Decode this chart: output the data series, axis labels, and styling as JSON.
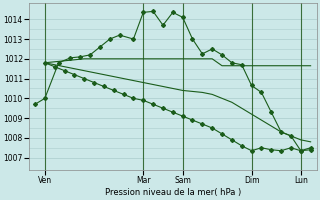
{
  "background_color": "#cce8e8",
  "grid_color": "#aacccc",
  "line_color": "#1a5c1a",
  "title": "Pression niveau de la mer( hPa )",
  "ylabel_ticks": [
    1007,
    1008,
    1009,
    1010,
    1011,
    1012,
    1013,
    1014
  ],
  "ylim": [
    1006.4,
    1014.8
  ],
  "xlim": [
    -0.3,
    14.3
  ],
  "x_day_labels": [
    "Ven",
    "Mar",
    "Sam",
    "Dim",
    "Lun"
  ],
  "x_day_positions": [
    0.5,
    5.5,
    7.5,
    11.0,
    13.5
  ],
  "x_vlines": [
    0.5,
    5.5,
    7.5,
    11.0,
    13.5
  ],
  "series1_x": [
    0.0,
    0.5,
    1.2,
    1.8,
    2.3,
    2.8,
    3.3,
    3.8,
    4.3,
    5.0,
    5.5,
    6.0,
    6.5,
    7.0,
    7.5,
    8.0,
    8.5,
    9.0,
    9.5,
    10.0,
    10.5,
    11.0,
    11.5,
    12.0,
    12.5,
    13.0,
    13.5,
    14.0
  ],
  "series1_y": [
    1009.7,
    1010.0,
    1011.8,
    1012.05,
    1012.1,
    1012.2,
    1012.6,
    1013.0,
    1013.2,
    1013.0,
    1014.35,
    1014.4,
    1013.7,
    1014.35,
    1014.1,
    1013.0,
    1012.25,
    1012.5,
    1012.2,
    1011.8,
    1011.7,
    1010.65,
    1010.3,
    1009.3,
    1008.3,
    1008.1,
    1007.35,
    1007.5
  ],
  "series2_x": [
    0.5,
    1.0,
    1.5,
    2.0,
    2.5,
    3.0,
    3.5,
    4.0,
    4.5,
    5.0,
    5.5,
    6.0,
    6.5,
    7.0,
    7.5,
    8.0,
    8.5,
    9.0,
    9.5,
    10.0,
    10.5,
    11.0,
    11.5,
    12.0,
    12.5,
    13.0,
    13.5,
    14.0
  ],
  "series2_y": [
    1011.8,
    1011.85,
    1011.9,
    1011.95,
    1012.0,
    1012.0,
    1012.0,
    1012.0,
    1012.0,
    1012.0,
    1012.0,
    1012.0,
    1012.0,
    1012.0,
    1012.0,
    1012.0,
    1012.0,
    1012.0,
    1011.65,
    1011.65,
    1011.65,
    1011.65,
    1011.65,
    1011.65,
    1011.65,
    1011.65,
    1011.65,
    1011.65
  ],
  "series3_x": [
    0.5,
    1.0,
    1.5,
    2.0,
    2.5,
    3.0,
    3.5,
    4.0,
    4.5,
    5.0,
    5.5,
    6.0,
    6.5,
    7.0,
    7.5,
    8.0,
    8.5,
    9.0,
    9.5,
    10.0,
    10.5,
    11.0,
    11.5,
    12.0,
    12.5,
    13.0,
    13.5,
    14.0
  ],
  "series3_y": [
    1011.8,
    1011.7,
    1011.6,
    1011.5,
    1011.4,
    1011.3,
    1011.2,
    1011.1,
    1011.0,
    1010.9,
    1010.8,
    1010.7,
    1010.6,
    1010.5,
    1010.4,
    1010.35,
    1010.3,
    1010.2,
    1010.0,
    1009.8,
    1009.5,
    1009.2,
    1008.9,
    1008.6,
    1008.3,
    1008.1,
    1007.9,
    1007.8
  ],
  "series4_x": [
    0.5,
    1.0,
    1.5,
    2.0,
    2.5,
    3.0,
    3.5,
    4.0,
    4.5,
    5.0,
    5.5,
    6.0,
    6.5,
    7.0,
    7.5,
    8.0,
    8.5,
    9.0,
    9.5,
    10.0,
    10.5,
    11.0,
    11.5,
    12.0,
    12.5,
    13.0,
    13.5,
    14.0
  ],
  "series4_y": [
    1011.8,
    1011.6,
    1011.4,
    1011.2,
    1011.0,
    1010.8,
    1010.6,
    1010.4,
    1010.2,
    1010.0,
    1009.9,
    1009.7,
    1009.5,
    1009.3,
    1009.1,
    1008.9,
    1008.7,
    1008.5,
    1008.2,
    1007.9,
    1007.6,
    1007.35,
    1007.5,
    1007.4,
    1007.35,
    1007.5,
    1007.35,
    1007.4
  ]
}
